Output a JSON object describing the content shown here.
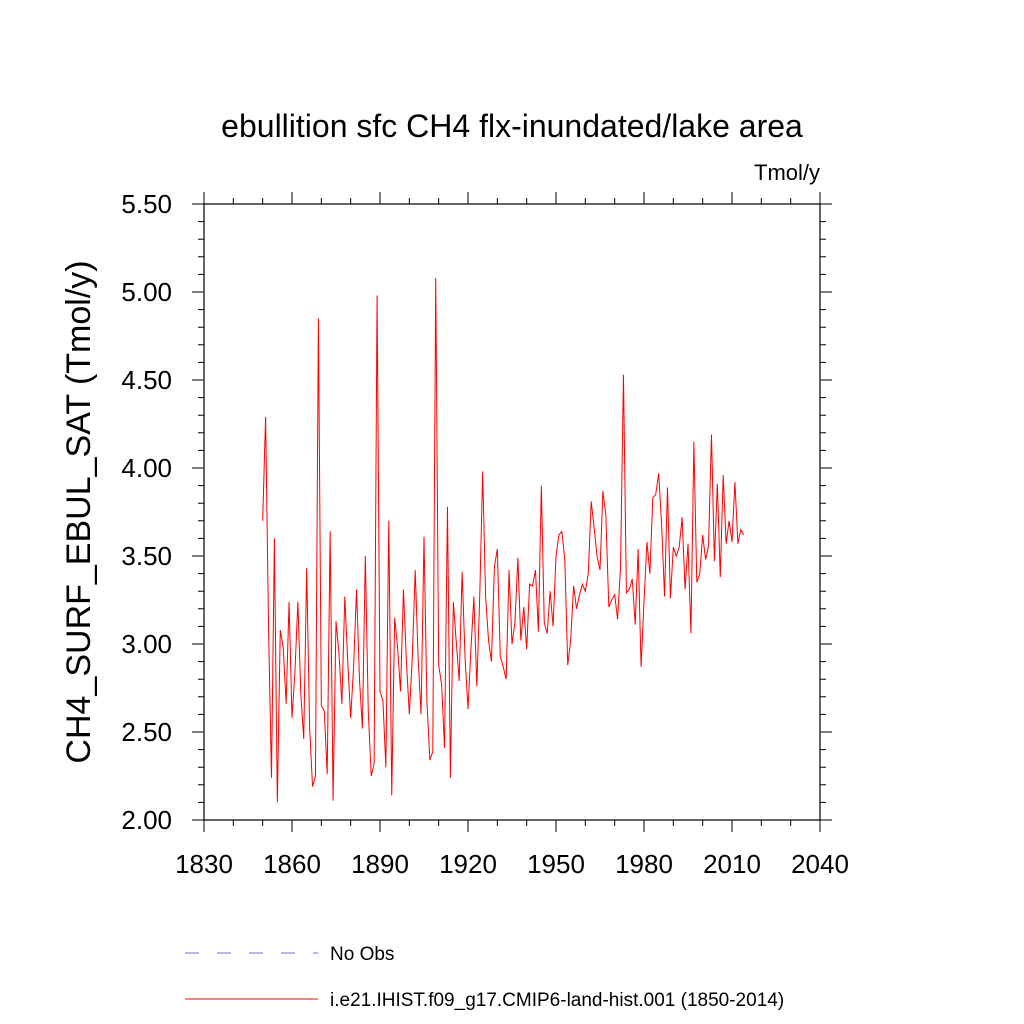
{
  "chart_data": {
    "type": "line",
    "title": "ebullition sfc CH4 flx-inundated/lake area",
    "units": "Tmol/y",
    "xlabel": "",
    "ylabel": "CH4_SURF_EBUL_SAT  (Tmol/y)",
    "xlim": [
      1830,
      2040
    ],
    "ylim": [
      2.0,
      5.5
    ],
    "xticks": [
      1830,
      1860,
      1890,
      1920,
      1950,
      1980,
      2010,
      2040
    ],
    "xtick_labels": [
      "1830",
      "1860",
      "1890",
      "1920",
      "1950",
      "1980",
      "2010",
      "2040"
    ],
    "yticks": [
      2.0,
      2.5,
      3.0,
      3.5,
      4.0,
      4.5,
      5.0,
      5.5
    ],
    "ytick_labels": [
      "2.00",
      "2.50",
      "3.00",
      "3.50",
      "4.00",
      "4.50",
      "5.00",
      "5.50"
    ],
    "grid": false,
    "legend_position": "bottom",
    "series": [
      {
        "name": "i.e21.IHIST.f09_g17.CMIP6-land-hist.001 (1850-2014)",
        "color": "#ff0000",
        "style": "solid",
        "x_start": 1850,
        "x_step": 1,
        "values": [
          3.7,
          4.29,
          3.1,
          2.24,
          3.6,
          2.1,
          3.08,
          2.98,
          2.66,
          3.24,
          2.58,
          2.84,
          3.24,
          2.72,
          2.46,
          3.43,
          2.53,
          2.19,
          2.25,
          4.85,
          2.65,
          2.62,
          2.26,
          3.64,
          2.11,
          3.13,
          2.95,
          2.66,
          3.27,
          2.9,
          2.58,
          2.87,
          3.31,
          2.8,
          2.52,
          3.5,
          2.62,
          2.25,
          2.32,
          4.98,
          2.73,
          2.68,
          2.3,
          3.7,
          2.14,
          3.15,
          2.98,
          2.73,
          3.31,
          2.9,
          2.6,
          2.92,
          3.42,
          2.92,
          2.6,
          3.61,
          2.67,
          2.34,
          2.39,
          5.08,
          2.88,
          2.77,
          2.41,
          3.78,
          2.24,
          3.24,
          3.01,
          2.79,
          3.41,
          2.92,
          2.63,
          2.97,
          3.27,
          2.76,
          3.27,
          3.98,
          3.27,
          3.02,
          2.9,
          3.44,
          3.54,
          2.93,
          2.87,
          2.8,
          3.42,
          3.0,
          3.12,
          3.49,
          3.02,
          3.21,
          2.97,
          3.34,
          3.33,
          3.42,
          3.07,
          3.9,
          3.12,
          3.06,
          3.3,
          3.1,
          3.5,
          3.62,
          3.64,
          3.48,
          2.88,
          3.02,
          3.33,
          3.2,
          3.28,
          3.34,
          3.3,
          3.4,
          3.81,
          3.66,
          3.5,
          3.42,
          3.87,
          3.73,
          3.21,
          3.25,
          3.28,
          3.14,
          3.44,
          4.53,
          3.29,
          3.31,
          3.37,
          3.11,
          3.54,
          2.87,
          3.24,
          3.58,
          3.4,
          3.83,
          3.85,
          3.97,
          3.68,
          3.27,
          3.89,
          3.26,
          3.55,
          3.5,
          3.55,
          3.72,
          3.31,
          3.57,
          3.06,
          4.15,
          3.35,
          3.4,
          3.62,
          3.48,
          3.56,
          4.19,
          3.47,
          3.91,
          3.38,
          3.96,
          3.57,
          3.7,
          3.58,
          3.92,
          3.57,
          3.65,
          3.62
        ]
      }
    ],
    "legend": [
      {
        "label": "No Obs",
        "color": "#7a6fc4",
        "style": "dashed"
      },
      {
        "label": "i.e21.IHIST.f09_g17.CMIP6-land-hist.001 (1850-2014)",
        "color": "#ff0000",
        "style": "solid"
      }
    ]
  }
}
